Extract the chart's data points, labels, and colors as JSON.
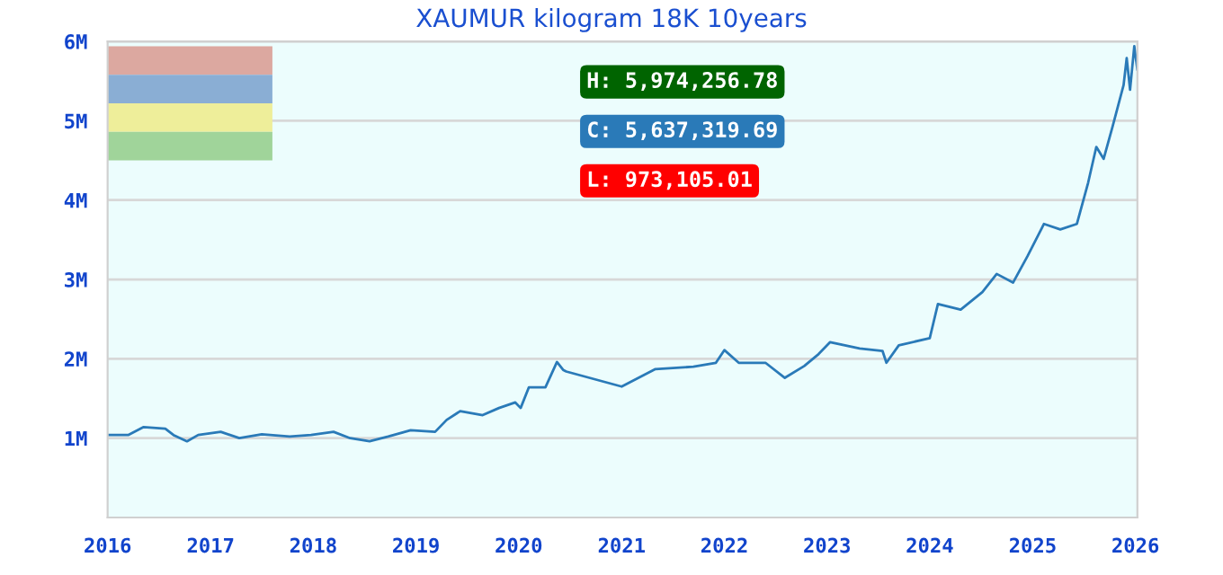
{
  "chart_data": {
    "type": "line",
    "title": "XAUMUR kilogram 18K 10years",
    "x": [
      "2016-01-01",
      "2016-03-14",
      "2016-05-08",
      "2016-07-24",
      "2016-08-22",
      "2016-10-09",
      "2016-11-18",
      "2017-02-06",
      "2017-04-13",
      "2017-07-02",
      "2017-10-09",
      "2017-12-24",
      "2018-03-14",
      "2018-05-12",
      "2018-07-20",
      "2018-09-24",
      "2018-12-13",
      "2019-03-10",
      "2019-04-20",
      "2019-06-07",
      "2019-08-26",
      "2019-10-23",
      "2019-12-20",
      "2020-01-08",
      "2020-02-06",
      "2020-04-05",
      "2020-05-16",
      "2020-06-07",
      "2020-06-18",
      "2021-01-01",
      "2021-05-01",
      "2021-09-13",
      "2021-12-02",
      "2022-01-01",
      "2022-02-21",
      "2022-05-27",
      "2022-08-04",
      "2022-10-12",
      "2022-12-02",
      "2023-01-12",
      "2023-04-27",
      "2023-07-17",
      "2023-07-31",
      "2023-09-13",
      "2024-01-01",
      "2024-01-30",
      "2024-04-20",
      "2024-07-06",
      "2024-08-26",
      "2024-10-23",
      "2024-12-13",
      "2025-02-10",
      "2025-04-09",
      "2025-06-07",
      "2025-07-17",
      "2025-08-15",
      "2025-09-10",
      "2025-10-12",
      "2025-11-20",
      "2025-12-01",
      "2025-12-13",
      "2025-12-28",
      "2026-01-08"
    ],
    "series": [
      {
        "color": "#2a7ab8",
        "values": [
          1040000,
          1040000,
          1140000,
          1120000,
          1040000,
          960000,
          1040000,
          1080000,
          1000000,
          1050000,
          1020000,
          1040000,
          1080000,
          1000000,
          960000,
          1020000,
          1100000,
          1080000,
          1230000,
          1340000,
          1290000,
          1380000,
          1450000,
          1380000,
          1640000,
          1640000,
          1960000,
          1860000,
          1840000,
          1650000,
          1870000,
          1900000,
          1950000,
          2110000,
          1950000,
          1950000,
          1760000,
          1910000,
          2060000,
          2210000,
          2130000,
          2100000,
          1950000,
          2170000,
          2260000,
          2690000,
          2620000,
          2840000,
          3070000,
          2960000,
          3290000,
          3700000,
          3630000,
          3700000,
          4220000,
          4670000,
          4520000,
          4930000,
          5450000,
          5790000,
          5390000,
          5940000,
          5640000
        ]
      }
    ],
    "xlim": [
      "2016-01-01",
      "2026-01-08"
    ],
    "xticks": [
      {
        "value": "2016-01-01",
        "label": "2016"
      },
      {
        "value": "2017-01-01",
        "label": "2017"
      },
      {
        "value": "2018-01-01",
        "label": "2018"
      },
      {
        "value": "2019-01-01",
        "label": "2019"
      },
      {
        "value": "2020-01-01",
        "label": "2020"
      },
      {
        "value": "2021-01-01",
        "label": "2021"
      },
      {
        "value": "2022-01-01",
        "label": "2022"
      },
      {
        "value": "2023-01-01",
        "label": "2023"
      },
      {
        "value": "2024-01-01",
        "label": "2024"
      },
      {
        "value": "2025-01-01",
        "label": "2025"
      },
      {
        "value": "2026-01-01",
        "label": "2026"
      }
    ],
    "ylim": [
      0,
      6000000
    ],
    "yticks": [
      {
        "value": 1000000,
        "label": "1M"
      },
      {
        "value": 2000000,
        "label": "2M"
      },
      {
        "value": 3000000,
        "label": "3M"
      },
      {
        "value": 4000000,
        "label": "4M"
      },
      {
        "value": 5000000,
        "label": "5M"
      },
      {
        "value": 6000000,
        "label": "6M"
      }
    ],
    "grid": "y",
    "annotations": [
      "H: 5,974,256.78",
      "C: 5,637,319.69",
      "L: 973,105.01"
    ]
  }
}
